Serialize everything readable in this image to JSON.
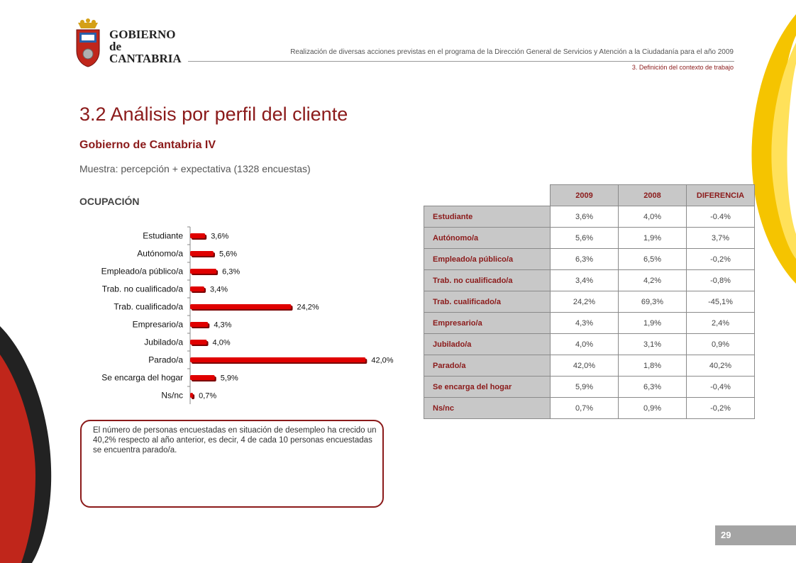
{
  "header": {
    "logo_line1": "GOBIERNO",
    "logo_line2": "de",
    "logo_line3": "CANTABRIA",
    "document_title": "Realización de diversas acciones previstas en el programa de la Dirección General de Servicios y Atención a la Ciudadanía para el año 2009",
    "section": "3. Definición del contexto de trabajo"
  },
  "main_title": "3.2 Análisis por perfil del cliente",
  "subtitle": "Gobierno de Cantabria IV",
  "sample": "Muestra: percepción + expectativa (1328 encuestas)",
  "section_label": "OCUPACIÓN",
  "chart_data": {
    "type": "bar",
    "orientation": "horizontal",
    "categories": [
      "Estudiante",
      "Autónomo/a",
      "Empleado/a público/a",
      "Trab. no cualificado/a",
      "Trab. cualificado/a",
      "Empresario/a",
      "Jubilado/a",
      "Parado/a",
      "Se encarga del hogar",
      "Ns/nc"
    ],
    "values": [
      3.6,
      5.6,
      6.3,
      3.4,
      24.2,
      4.3,
      4.0,
      42.0,
      5.9,
      0.7
    ],
    "labels": [
      "3,6%",
      "5,6%",
      "6,3%",
      "3,4%",
      "24,2%",
      "4,3%",
      "4,0%",
      "42,0%",
      "5,9%",
      "0,7%"
    ],
    "xlim": [
      0,
      45
    ],
    "bar_color": "#e00000",
    "grid": false,
    "legend": "none"
  },
  "table": {
    "headers": [
      "2009",
      "2008",
      "DIFERENCIA"
    ],
    "rows": [
      {
        "label": "Estudiante",
        "y2009": "3,6%",
        "y2008": "4,0%",
        "diff": "-0.4%"
      },
      {
        "label": "Autónomo/a",
        "y2009": "5,6%",
        "y2008": "1,9%",
        "diff": "3,7%"
      },
      {
        "label": "Empleado/a público/a",
        "y2009": "6,3%",
        "y2008": "6,5%",
        "diff": "-0,2%"
      },
      {
        "label": "Trab. no cualificado/a",
        "y2009": "3,4%",
        "y2008": "4,2%",
        "diff": "-0,8%"
      },
      {
        "label": "Trab. cualificado/a",
        "y2009": "24,2%",
        "y2008": "69,3%",
        "diff": "-45,1%"
      },
      {
        "label": "Empresario/a",
        "y2009": "4,3%",
        "y2008": "1,9%",
        "diff": "2,4%"
      },
      {
        "label": "Jubilado/a",
        "y2009": "4,0%",
        "y2008": "3,1%",
        "diff": "0,9%"
      },
      {
        "label": "Parado/a",
        "y2009": "42,0%",
        "y2008": "1,8%",
        "diff": "40,2%"
      },
      {
        "label": "Se encarga del hogar",
        "y2009": "5,9%",
        "y2008": "6,3%",
        "diff": "-0,4%"
      },
      {
        "label": "Ns/nc",
        "y2009": "0,7%",
        "y2008": "0,9%",
        "diff": "-0,2%"
      }
    ]
  },
  "note": "El número de personas encuestadas en situación de desempleo ha crecido un 40,2% respecto al año anterior, es decir, 4 de cada 10 personas encuestadas se encuentra parado/a.",
  "page_number": "29",
  "colors": {
    "accent": "#8b1a1a",
    "bar": "#e00000",
    "table_header_bg": "#c8c8c8",
    "page_bar": "#a4a4a4",
    "deco_yellow": "#f5c400",
    "deco_red": "#c0261b"
  }
}
